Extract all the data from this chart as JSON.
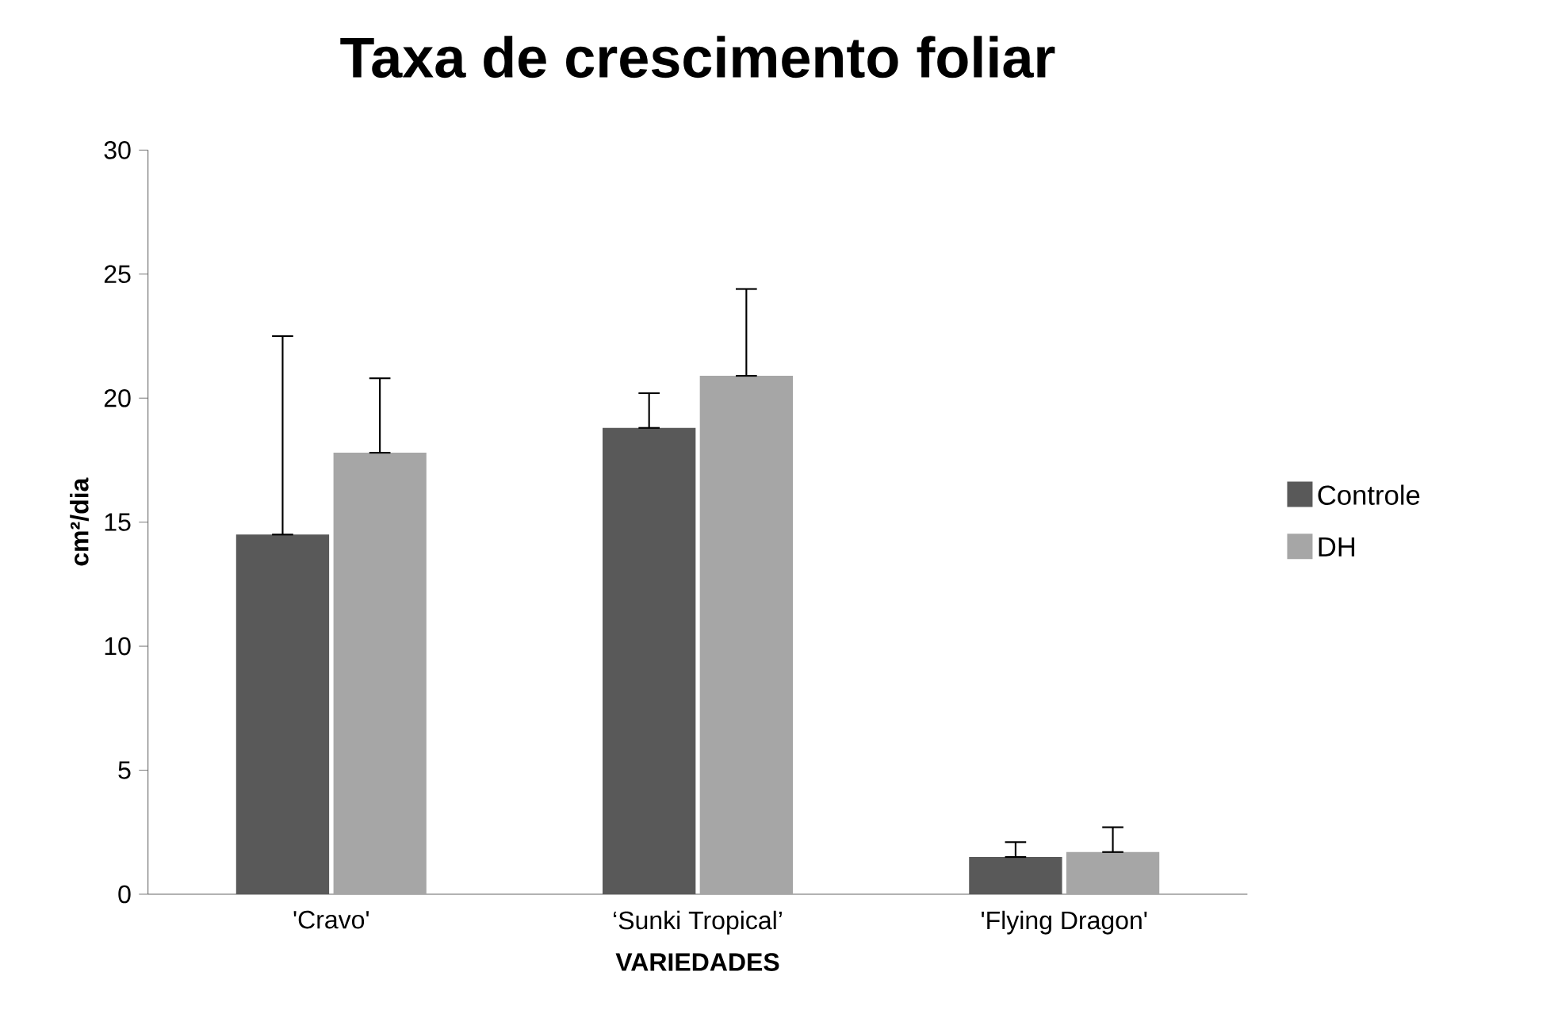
{
  "chart_data": {
    "type": "bar",
    "title": "Taxa de crescimento foliar",
    "xlabel": "VARIEDADES",
    "ylabel": "cm²/dia",
    "categories": [
      "'Cravo'",
      "‘Sunki Tropical’",
      "'Flying Dragon'"
    ],
    "series": [
      {
        "name": "Controle",
        "color": "#595959",
        "values": [
          14.5,
          18.8,
          1.5
        ],
        "errors": [
          [
            14.5,
            22.5
          ],
          [
            18.8,
            20.2
          ],
          [
            1.5,
            2.1
          ]
        ]
      },
      {
        "name": "DH",
        "color": "#a6a6a6",
        "values": [
          17.8,
          20.9,
          1.7
        ],
        "errors": [
          [
            17.8,
            20.8
          ],
          [
            20.9,
            24.4
          ],
          [
            1.7,
            2.7
          ]
        ]
      }
    ],
    "ylim": [
      0,
      30
    ],
    "yticks": [
      0,
      5,
      10,
      15,
      20,
      25,
      30
    ],
    "grid": false,
    "legend": "right"
  }
}
